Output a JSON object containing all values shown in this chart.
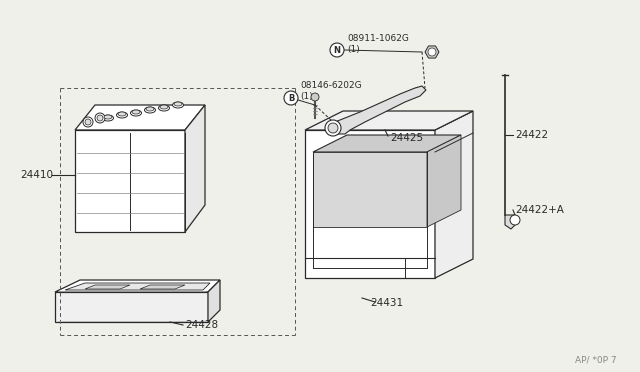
{
  "bg_color": "#f0f0eb",
  "line_color": "#2a2a2a",
  "fill_color": "#ffffff",
  "watermark": "AP/ *0P 7",
  "parts": {
    "battery_label": "24410",
    "tray_label": "24428",
    "box_label": "24431",
    "rod_label": "24422",
    "bracket_label": "24422+A",
    "clamp_label": "24425",
    "bolt_label": "08146-6202G\n(1)",
    "nut_label": "08911-1062G\n(1)"
  }
}
